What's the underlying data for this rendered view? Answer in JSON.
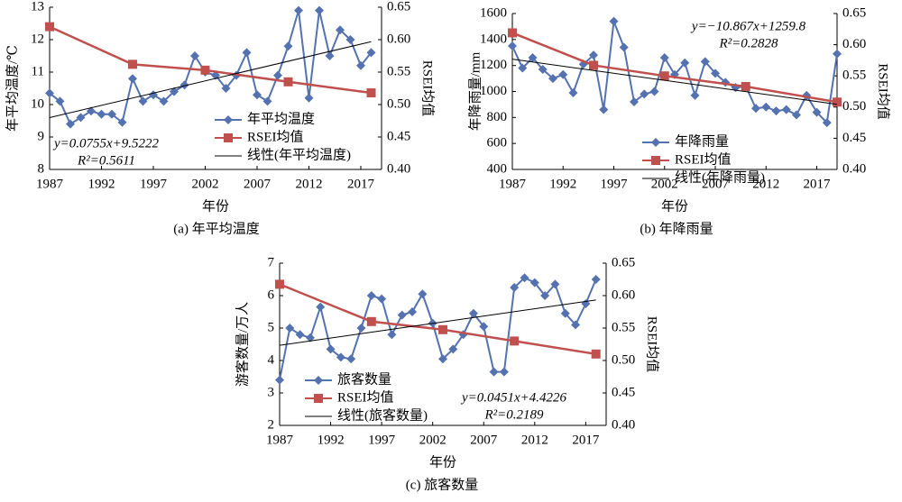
{
  "chart_data": [
    {
      "type": "line",
      "caption": "(a) 年平均温度",
      "xlabel": "年份",
      "ylabel": "年平均温度/℃",
      "y2label": "RSEI均值",
      "x": [
        1987,
        1988,
        1989,
        1990,
        1991,
        1992,
        1993,
        1994,
        1995,
        1996,
        1997,
        1998,
        1999,
        2000,
        2001,
        2002,
        2003,
        2004,
        2005,
        2006,
        2007,
        2008,
        2009,
        2010,
        2011,
        2012,
        2013,
        2014,
        2015,
        2016,
        2017,
        2018
      ],
      "xlim": [
        1987,
        2019
      ],
      "xticks": [
        1987,
        1992,
        1997,
        2002,
        2007,
        2012,
        2017
      ],
      "ylim": [
        8,
        13
      ],
      "yticks": [
        8,
        9,
        10,
        11,
        12,
        13
      ],
      "y2lim": [
        0.4,
        0.65
      ],
      "y2ticks": [
        {
          "value": 0.4,
          "label": "0.40"
        },
        {
          "value": 0.45,
          "label": "0.45"
        },
        {
          "value": 0.5,
          "label": "0.50"
        },
        {
          "value": 0.55,
          "label": "0.55"
        },
        {
          "value": 0.6,
          "label": "0.60"
        },
        {
          "value": 0.65,
          "label": "0.65"
        }
      ],
      "series": [
        {
          "name": "年平均温度",
          "color": "#5472b0",
          "values": [
            10.35,
            10.1,
            9.4,
            9.6,
            9.8,
            9.7,
            9.7,
            9.45,
            10.8,
            10.1,
            10.3,
            10.1,
            10.4,
            10.6,
            11.5,
            11.0,
            10.9,
            10.5,
            10.9,
            11.6,
            10.3,
            10.1,
            10.9,
            11.8,
            12.9,
            10.2,
            12.9,
            11.5,
            12.3,
            12.0,
            11.2,
            11.6
          ]
        },
        {
          "name": "RSEI均值",
          "color": "#c0504d",
          "axis": "y2",
          "x": [
            1987,
            1995,
            2002,
            2010,
            2018
          ],
          "values": [
            0.62,
            0.562,
            0.553,
            0.535,
            0.518
          ]
        },
        {
          "name": "线性(年平均温度)",
          "color": "#000000",
          "slope": 0.0755,
          "intercept": 9.5222
        }
      ],
      "annotations": [
        "y=0.0755x+9.5222",
        "R²=0.5611"
      ]
    },
    {
      "type": "line",
      "caption": "(b) 年降雨量",
      "xlabel": "年份",
      "ylabel": "年降雨量/mm",
      "y2label": "RSEI均值",
      "x": [
        1987,
        1988,
        1989,
        1990,
        1991,
        1992,
        1993,
        1994,
        1995,
        1996,
        1997,
        1998,
        1999,
        2000,
        2001,
        2002,
        2003,
        2004,
        2005,
        2006,
        2007,
        2008,
        2009,
        2010,
        2011,
        2012,
        2013,
        2014,
        2015,
        2016,
        2017,
        2018,
        2019
      ],
      "xlim": [
        1987,
        2019
      ],
      "xticks": [
        1987,
        1992,
        1997,
        2002,
        2007,
        2012,
        2017
      ],
      "ylim": [
        400,
        1600
      ],
      "yticks": [
        400,
        600,
        800,
        1000,
        1200,
        1400,
        1600
      ],
      "y2lim": [
        0.4,
        0.65
      ],
      "y2ticks": [
        {
          "value": 0.4,
          "label": "0.40"
        },
        {
          "value": 0.45,
          "label": "0.45"
        },
        {
          "value": 0.5,
          "label": "0.50"
        },
        {
          "value": 0.55,
          "label": "0.55"
        },
        {
          "value": 0.6,
          "label": "0.60"
        },
        {
          "value": 0.65,
          "label": "0.65"
        }
      ],
      "series": [
        {
          "name": "年降雨量",
          "color": "#5472b0",
          "values": [
            1350,
            1180,
            1260,
            1170,
            1100,
            1130,
            990,
            1210,
            1280,
            860,
            1540,
            1340,
            920,
            980,
            1000,
            1260,
            1130,
            1220,
            970,
            1230,
            1140,
            1070,
            1030,
            1040,
            870,
            880,
            850,
            860,
            820,
            970,
            840,
            760,
            1290
          ]
        },
        {
          "name": "RSEI均值",
          "color": "#c0504d",
          "axis": "y2",
          "x": [
            1987,
            1995,
            2002,
            2010,
            2019
          ],
          "values": [
            0.619,
            0.567,
            0.55,
            0.533,
            0.508
          ]
        },
        {
          "name": "线性(年降雨量)",
          "color": "#000000",
          "slope": -10.867,
          "intercept": 1259.8
        }
      ],
      "annotations": [
        "y=−10.867x+1259.8",
        "R²=0.2828"
      ]
    },
    {
      "type": "line",
      "caption": "(c) 旅客数量",
      "xlabel": "年份",
      "ylabel": "游客数量/万人",
      "y2label": "RSEI均值",
      "x": [
        1987,
        1988,
        1989,
        1990,
        1991,
        1992,
        1993,
        1994,
        1995,
        1996,
        1997,
        1998,
        1999,
        2000,
        2001,
        2002,
        2003,
        2004,
        2005,
        2006,
        2007,
        2008,
        2009,
        2010,
        2011,
        2012,
        2013,
        2014,
        2015,
        2016,
        2017,
        2018
      ],
      "xlim": [
        1987,
        2019
      ],
      "xticks": [
        1987,
        1992,
        1997,
        2002,
        2007,
        2012,
        2017
      ],
      "ylim": [
        2,
        7
      ],
      "yticks": [
        2,
        3,
        4,
        5,
        6,
        7
      ],
      "y2lim": [
        0.4,
        0.65
      ],
      "y2ticks": [
        {
          "value": 0.4,
          "label": "0.40"
        },
        {
          "value": 0.45,
          "label": "0.45"
        },
        {
          "value": 0.5,
          "label": "0.50"
        },
        {
          "value": 0.55,
          "label": "0.55"
        },
        {
          "value": 0.6,
          "label": "0.60"
        },
        {
          "value": 0.65,
          "label": "0.65"
        }
      ],
      "series": [
        {
          "name": "旅客数量",
          "color": "#5472b0",
          "values": [
            3.4,
            5.0,
            4.8,
            4.7,
            5.65,
            4.35,
            4.1,
            4.05,
            5.0,
            6.0,
            5.9,
            4.8,
            5.4,
            5.5,
            6.05,
            5.15,
            4.05,
            4.35,
            4.8,
            5.45,
            5.05,
            3.65,
            3.65,
            6.25,
            6.55,
            6.4,
            6.0,
            6.35,
            5.45,
            5.1,
            5.75,
            6.5
          ]
        },
        {
          "name": "RSEI均值",
          "color": "#c0504d",
          "axis": "y2",
          "x": [
            1987,
            1996,
            2003,
            2010,
            2018
          ],
          "values": [
            0.6175,
            0.56,
            0.5475,
            0.53,
            0.51
          ]
        },
        {
          "name": "线性(旅客数量)",
          "color": "#000000",
          "slope": 0.0451,
          "intercept": 4.4226
        }
      ],
      "annotations": [
        "y=0.0451x+4.4226",
        "R²=0.2189"
      ]
    }
  ]
}
